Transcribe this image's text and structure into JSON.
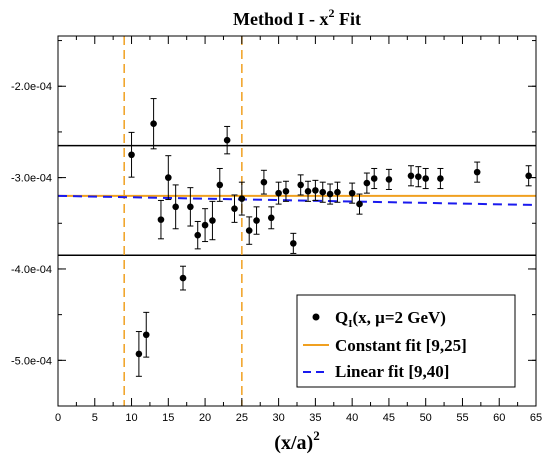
{
  "chart_data": {
    "type": "scatter",
    "title": "Method I - x^2 Fit",
    "title_main": "Method I - x",
    "title_sup": "2",
    "title_tail": " Fit",
    "xlabel": "(x/a)",
    "xlabel_sup": "2",
    "xlim": [
      0,
      65
    ],
    "ylim": [
      -0.00055,
      -0.000145
    ],
    "x_ticks": [
      0,
      5,
      10,
      15,
      20,
      25,
      30,
      35,
      40,
      45,
      50,
      55,
      60,
      65
    ],
    "y_ticks": [
      -0.0005,
      -0.0004,
      -0.0003,
      -0.0002
    ],
    "y_tick_labels": [
      "-5.0e-04",
      "-4.0e-04",
      "-3.0e-04",
      "-2.0e-04"
    ],
    "grid": false,
    "legend_position": "bottom-right",
    "series": [
      {
        "name": "Q_I(x, μ=2 GeV)",
        "legend_main": "Q",
        "legend_sub": "I",
        "legend_rest": "(x, μ=2 GeV)",
        "color": "#000000",
        "points": [
          {
            "x": 10,
            "y": -0.000275,
            "err": 2.45e-05
          },
          {
            "x": 11,
            "y": -0.000493,
            "err": 2.45e-05
          },
          {
            "x": 12,
            "y": -0.000472,
            "err": 2.45e-05
          },
          {
            "x": 13,
            "y": -0.000241,
            "err": 2.75e-05
          },
          {
            "x": 14,
            "y": -0.000346,
            "err": 2.1e-05
          },
          {
            "x": 15,
            "y": -0.0003,
            "err": 2.4e-05
          },
          {
            "x": 16,
            "y": -0.000332,
            "err": 2.4e-05
          },
          {
            "x": 17,
            "y": -0.00041,
            "err": 1.3e-05
          },
          {
            "x": 18,
            "y": -0.000332,
            "err": 2.1e-05
          },
          {
            "x": 19,
            "y": -0.000363,
            "err": 1.5e-05
          },
          {
            "x": 20,
            "y": -0.000352,
            "err": 1.8e-05
          },
          {
            "x": 21,
            "y": -0.000347,
            "err": 2.1e-05
          },
          {
            "x": 22,
            "y": -0.000308,
            "err": 1.8e-05
          },
          {
            "x": 23,
            "y": -0.000259,
            "err": 1.5e-05
          },
          {
            "x": 24,
            "y": -0.000334,
            "err": 1.5e-05
          },
          {
            "x": 25,
            "y": -0.000323,
            "err": 1.8e-05
          },
          {
            "x": 26,
            "y": -0.000358,
            "err": 1.5e-05
          },
          {
            "x": 27,
            "y": -0.000347,
            "err": 1.5e-05
          },
          {
            "x": 28,
            "y": -0.000305,
            "err": 1.3e-05
          },
          {
            "x": 29,
            "y": -0.000344,
            "err": 1.2e-05
          },
          {
            "x": 30,
            "y": -0.000317,
            "err": 1.2e-05
          },
          {
            "x": 31,
            "y": -0.000315,
            "err": 1.1e-05
          },
          {
            "x": 32,
            "y": -0.000372,
            "err": 1.1e-05
          },
          {
            "x": 33,
            "y": -0.000308,
            "err": 1.1e-05
          },
          {
            "x": 34,
            "y": -0.000315,
            "err": 1.1e-05
          },
          {
            "x": 35,
            "y": -0.000314,
            "err": 1.1e-05
          },
          {
            "x": 36,
            "y": -0.000316,
            "err": 1.1e-05
          },
          {
            "x": 37,
            "y": -0.000318,
            "err": 1.1e-05
          },
          {
            "x": 38,
            "y": -0.000316,
            "err": 1.1e-05
          },
          {
            "x": 40,
            "y": -0.000317,
            "err": 1.1e-05
          },
          {
            "x": 41,
            "y": -0.000329,
            "err": 1.1e-05
          },
          {
            "x": 42,
            "y": -0.000306,
            "err": 1.1e-05
          },
          {
            "x": 43,
            "y": -0.000301,
            "err": 1.1e-05
          },
          {
            "x": 45,
            "y": -0.000302,
            "err": 1.1e-05
          },
          {
            "x": 48,
            "y": -0.000298,
            "err": 1.1e-05
          },
          {
            "x": 49,
            "y": -0.000299,
            "err": 1.1e-05
          },
          {
            "x": 50,
            "y": -0.000301,
            "err": 1.1e-05
          },
          {
            "x": 52,
            "y": -0.000301,
            "err": 1.1e-05
          },
          {
            "x": 57,
            "y": -0.000294,
            "err": 1.1e-05
          },
          {
            "x": 64,
            "y": -0.000298,
            "err": 1.1e-05
          }
        ]
      },
      {
        "name": "Constant fit [9,25]",
        "type": "line",
        "color": "#f0a020",
        "style": "solid",
        "x": [
          0,
          65
        ],
        "y": [
          -0.00032,
          -0.00032
        ]
      },
      {
        "name": "Linear fit [9,40]",
        "type": "line",
        "color": "#1a1aee",
        "style": "dashed",
        "x": [
          0,
          65
        ],
        "y": [
          -0.00032,
          -0.00033
        ]
      }
    ],
    "reference_lines": {
      "horizontal": [
        {
          "y": -0.000265,
          "color": "#000000"
        },
        {
          "y": -0.000385,
          "color": "#000000"
        }
      ],
      "vertical": [
        {
          "x": 9,
          "color": "#f0a020",
          "style": "dashed"
        },
        {
          "x": 25,
          "color": "#f0a020",
          "style": "dashed"
        }
      ]
    }
  }
}
